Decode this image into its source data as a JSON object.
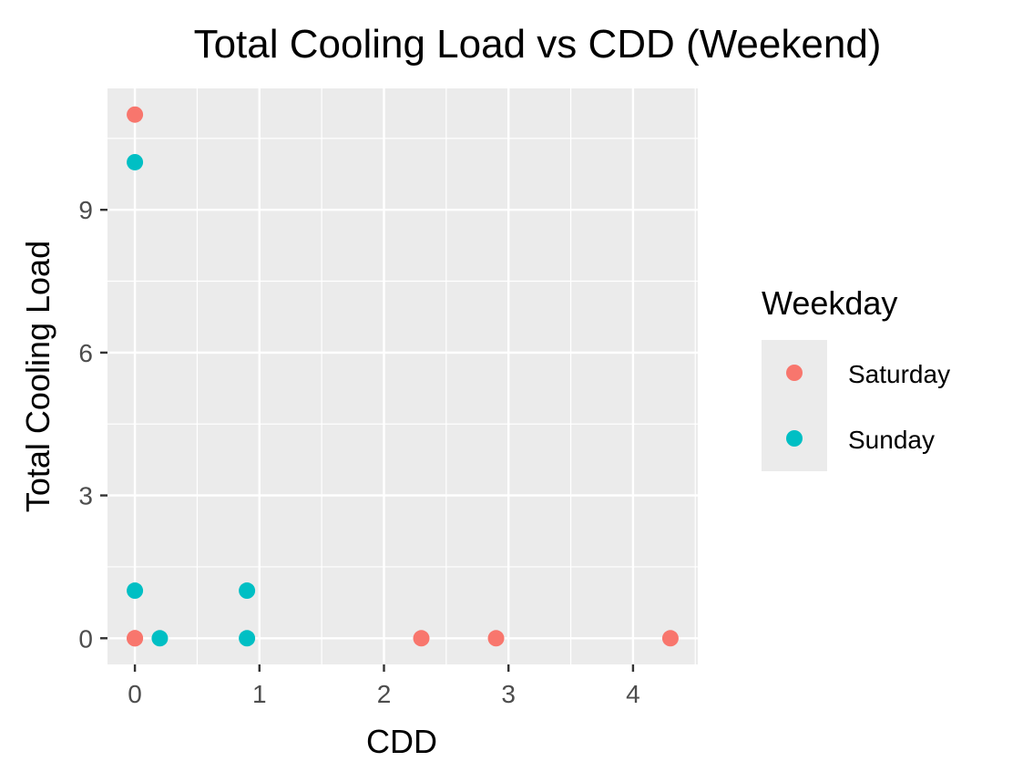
{
  "chart_data": {
    "type": "scatter",
    "title": "Total Cooling Load vs CDD (Weekend)",
    "xlabel": "CDD",
    "ylabel": "Total Cooling Load",
    "xlim": [
      -0.22,
      4.52
    ],
    "ylim": [
      -0.55,
      11.55
    ],
    "xticks": [
      0,
      1,
      2,
      3,
      4
    ],
    "yticks": [
      0,
      3,
      6,
      9
    ],
    "grid": true,
    "legend": {
      "title": "Weekday",
      "placement": "right"
    },
    "series": [
      {
        "name": "Saturday",
        "color": "#F8766D",
        "points": [
          {
            "x": 0.0,
            "y": 11
          },
          {
            "x": 0.0,
            "y": 0
          },
          {
            "x": 0.0,
            "y": 0
          },
          {
            "x": 2.3,
            "y": 0
          },
          {
            "x": 2.9,
            "y": 0
          },
          {
            "x": 4.3,
            "y": 0
          }
        ]
      },
      {
        "name": "Sunday",
        "color": "#00BFC4",
        "points": [
          {
            "x": 0.0,
            "y": 10
          },
          {
            "x": 0.0,
            "y": 1
          },
          {
            "x": 0.2,
            "y": 0
          },
          {
            "x": 0.9,
            "y": 1
          },
          {
            "x": 0.9,
            "y": 0
          }
        ]
      }
    ]
  }
}
